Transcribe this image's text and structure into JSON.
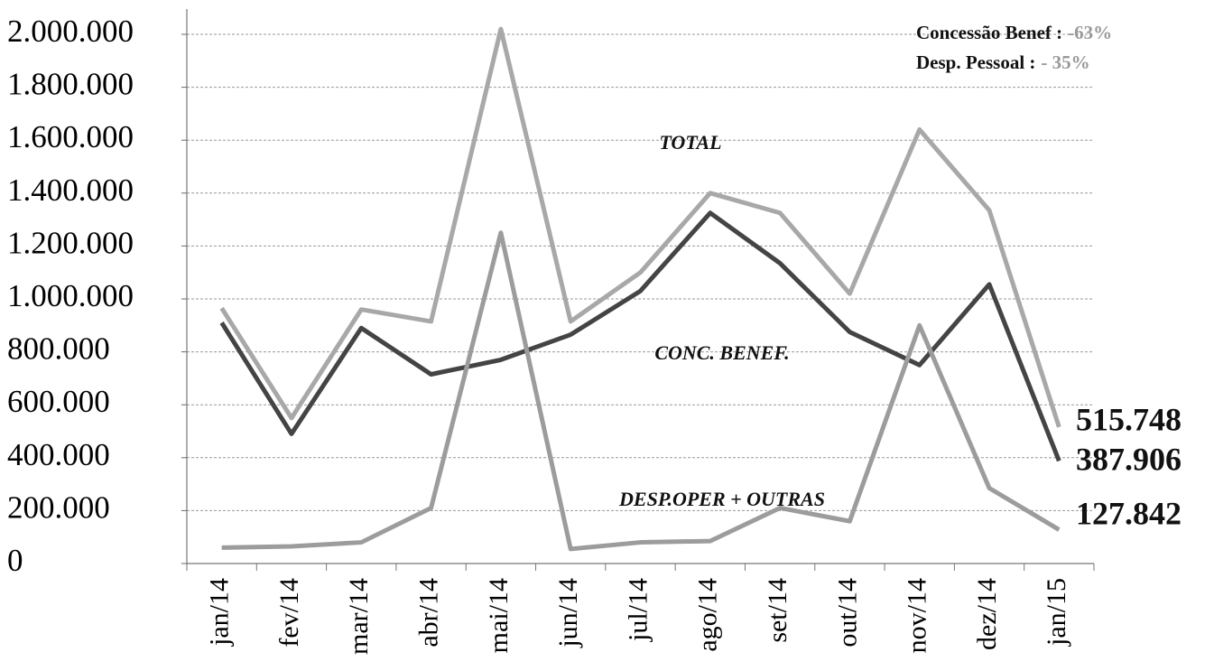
{
  "chart_data": {
    "type": "line",
    "categories": [
      "jan/14",
      "fev/14",
      "mar/14",
      "abr/14",
      "mai/14",
      "jun/14",
      "jul/14",
      "ago/14",
      "set/14",
      "out/14",
      "nov/14",
      "dez/14",
      "jan/15"
    ],
    "series": [
      {
        "name": "TOTAL",
        "color": "#a8a8a8",
        "values": [
          965000,
          550000,
          960000,
          915000,
          2020000,
          915000,
          1100000,
          1400000,
          1325000,
          1020000,
          1640000,
          1335000,
          515748
        ],
        "value_labels": [
          null,
          null,
          null,
          null,
          null,
          null,
          null,
          null,
          null,
          null,
          null,
          null,
          "515.748"
        ]
      },
      {
        "name": "CONC. BENEF.",
        "color": "#444444",
        "values": [
          910000,
          490000,
          890000,
          715000,
          770000,
          865000,
          1030000,
          1325000,
          1135000,
          875000,
          750000,
          1055000,
          387906
        ],
        "value_labels": [
          null,
          null,
          null,
          null,
          null,
          null,
          null,
          null,
          null,
          null,
          null,
          null,
          "387.906"
        ]
      },
      {
        "name": "DESP.OPER + OUTRAS",
        "color": "#9c9c9c",
        "values": [
          60000,
          65000,
          80000,
          210000,
          1250000,
          55000,
          80000,
          85000,
          210000,
          160000,
          900000,
          285000,
          127842
        ],
        "value_labels": [
          null,
          null,
          null,
          null,
          null,
          null,
          null,
          null,
          null,
          null,
          null,
          null,
          "127.842"
        ]
      }
    ],
    "ylim": [
      0,
      2000000
    ],
    "yticks": [
      0,
      {
        "value": 200000,
        "label": "200.000"
      },
      {
        "value": 400000,
        "label": "400.000"
      },
      {
        "value": 600000,
        "label": "600.000"
      },
      {
        "value": 800000,
        "label": "800.000"
      },
      {
        "value": 1000000,
        "label": "1.000.000"
      },
      {
        "value": 1200000,
        "label": "1.200.000"
      },
      {
        "value": 1400000,
        "label": "1.400.000"
      },
      {
        "value": 1600000,
        "label": "1.600.000"
      },
      {
        "value": 1800000,
        "label": "1.800.000"
      },
      {
        "value": 2000000,
        "label": "2.000.000"
      }
    ],
    "grid": true,
    "annotations": [
      {
        "text": "Concessão  Benef :",
        "value": "-63%"
      },
      {
        "text": "Desp. Pessoal :",
        "value": "- 35%"
      }
    ]
  }
}
